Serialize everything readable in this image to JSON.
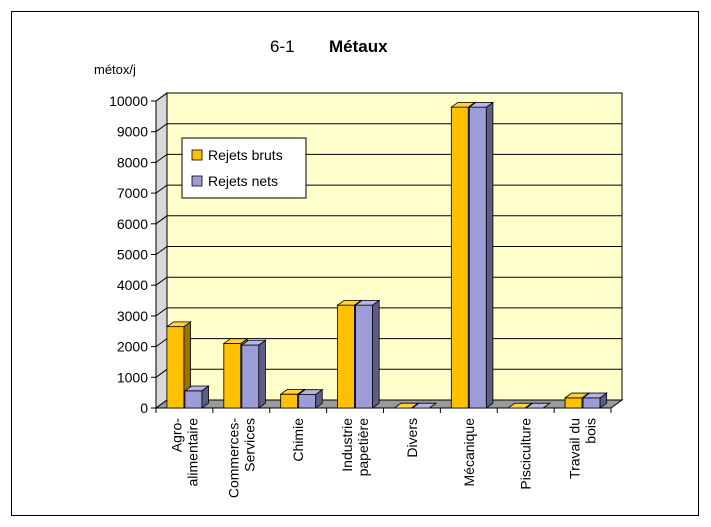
{
  "chart_data": {
    "type": "bar",
    "title_prefix": "6-1",
    "title": "Métaux",
    "ylabel": "métox/j",
    "ylim": [
      0,
      10000
    ],
    "yticks": [
      0,
      1000,
      2000,
      3000,
      4000,
      5000,
      6000,
      7000,
      8000,
      9000,
      10000
    ],
    "categories": [
      [
        "Agro-",
        "alimentaire"
      ],
      [
        "Commerces-",
        "Services"
      ],
      [
        "Chimie"
      ],
      [
        "Industrie",
        "papetière"
      ],
      [
        "Divers"
      ],
      [
        "Mécanique"
      ],
      [
        "Pisciculture"
      ],
      [
        "Travail du",
        "bois"
      ]
    ],
    "series": [
      {
        "name": "Rejets bruts",
        "color": "#ffc000",
        "values": [
          2650,
          2100,
          450,
          3350,
          0,
          9800,
          0,
          330
        ]
      },
      {
        "name": "Rejets nets",
        "color": "#9c9cd8",
        "values": [
          560,
          2050,
          440,
          3350,
          0,
          9800,
          0,
          330
        ]
      }
    ],
    "legend_position": "top-left",
    "grid": true,
    "colors": {
      "plot_bg": "#ffffcc",
      "floor": "#9a9a9a"
    }
  }
}
